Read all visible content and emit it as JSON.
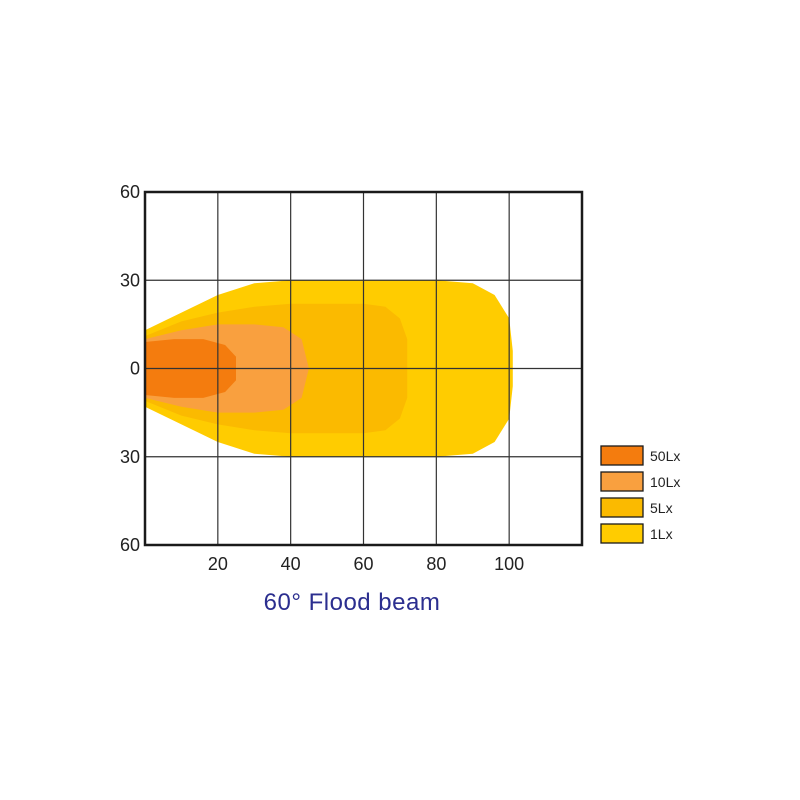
{
  "chart_data": {
    "type": "area",
    "title": "60° Flood beam",
    "xlabel": "",
    "ylabel": "",
    "xlim": [
      0,
      120
    ],
    "ylim": [
      -60,
      60
    ],
    "x_ticks": [
      20,
      40,
      60,
      80,
      100
    ],
    "y_ticks": [
      {
        "value": 60,
        "label": "60"
      },
      {
        "value": 30,
        "label": "30"
      },
      {
        "value": 0,
        "label": "0"
      },
      {
        "value": -30,
        "label": "30"
      },
      {
        "value": -60,
        "label": "60"
      }
    ],
    "grid": true,
    "legend_position": "right",
    "series": [
      {
        "name": "1Lx",
        "color": "#FFCC00",
        "outline": [
          [
            0,
            13
          ],
          [
            10,
            19
          ],
          [
            20,
            25
          ],
          [
            30,
            29
          ],
          [
            40,
            30
          ],
          [
            60,
            30
          ],
          [
            80,
            30
          ],
          [
            90,
            29
          ],
          [
            96,
            25
          ],
          [
            100,
            17
          ],
          [
            101,
            6
          ],
          [
            101,
            -6
          ],
          [
            100,
            -17
          ],
          [
            96,
            -25
          ],
          [
            90,
            -29
          ],
          [
            80,
            -30
          ],
          [
            60,
            -30
          ],
          [
            40,
            -30
          ],
          [
            30,
            -29
          ],
          [
            20,
            -25
          ],
          [
            10,
            -19
          ],
          [
            0,
            -13
          ]
        ]
      },
      {
        "name": "5Lx",
        "color": "#FBBA00",
        "outline": [
          [
            0,
            11
          ],
          [
            10,
            16
          ],
          [
            20,
            19
          ],
          [
            30,
            21
          ],
          [
            40,
            22
          ],
          [
            60,
            22
          ],
          [
            66,
            21
          ],
          [
            70,
            17
          ],
          [
            72,
            10
          ],
          [
            72,
            -10
          ],
          [
            70,
            -17
          ],
          [
            66,
            -21
          ],
          [
            60,
            -22
          ],
          [
            40,
            -22
          ],
          [
            30,
            -21
          ],
          [
            20,
            -19
          ],
          [
            10,
            -16
          ],
          [
            0,
            -11
          ]
        ]
      },
      {
        "name": "10Lx",
        "color": "#F9A03F",
        "outline": [
          [
            0,
            10
          ],
          [
            10,
            13
          ],
          [
            20,
            15
          ],
          [
            30,
            15
          ],
          [
            38,
            14
          ],
          [
            43,
            10
          ],
          [
            45,
            0
          ],
          [
            43,
            -10
          ],
          [
            38,
            -14
          ],
          [
            30,
            -15
          ],
          [
            20,
            -15
          ],
          [
            10,
            -13
          ],
          [
            0,
            -10
          ]
        ]
      },
      {
        "name": "50Lx",
        "color": "#F47C0E",
        "outline": [
          [
            0,
            9
          ],
          [
            8,
            10
          ],
          [
            16,
            10
          ],
          [
            22,
            8
          ],
          [
            25,
            4
          ],
          [
            25,
            -4
          ],
          [
            22,
            -8
          ],
          [
            16,
            -10
          ],
          [
            8,
            -10
          ],
          [
            0,
            -9
          ]
        ]
      }
    ]
  }
}
